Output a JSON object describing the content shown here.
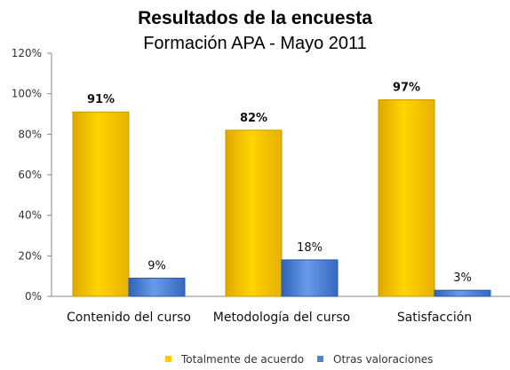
{
  "chart_data": {
    "type": "bar",
    "title": "Resultados de la encuesta",
    "subtitle": "Formación APA - Mayo 2011",
    "categories": [
      "Contenido del curso",
      "Metodología del curso",
      "Satisfacción"
    ],
    "series": [
      {
        "name": "Totalmente de acuerdo",
        "values": [
          91,
          82,
          97
        ],
        "labels": [
          "91%",
          "82%",
          "97%"
        ],
        "color": "#FFCC00"
      },
      {
        "name": "Otras valoraciones",
        "values": [
          9,
          18,
          3
        ],
        "labels": [
          "9%",
          "18%",
          "3%"
        ],
        "color": "#4F81D7"
      }
    ],
    "yticks": [
      "0%",
      "20%",
      "40%",
      "60%",
      "80%",
      "100%",
      "120%"
    ],
    "ylim": [
      0,
      120
    ],
    "grid": false,
    "legend": "bottom"
  }
}
